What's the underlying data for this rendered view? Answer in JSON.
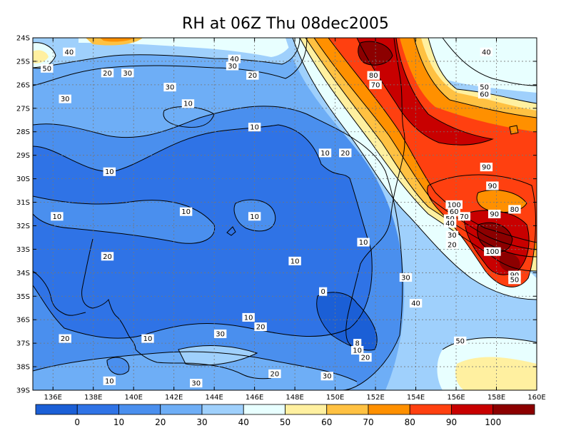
{
  "chart_data": {
    "type": "heatmap",
    "title": "RH at 06Z Thu 08dec2005",
    "xlabel": "",
    "ylabel": "",
    "xlim": [
      135,
      160
    ],
    "ylim": [
      -39,
      -24
    ],
    "x_ticks": [
      136,
      138,
      140,
      142,
      144,
      146,
      148,
      150,
      152,
      154,
      156,
      158,
      160
    ],
    "x_tick_labels": [
      "136E",
      "138E",
      "140E",
      "142E",
      "144E",
      "146E",
      "148E",
      "150E",
      "152E",
      "154E",
      "156E",
      "158E",
      "160E"
    ],
    "y_ticks": [
      -24,
      -25,
      -26,
      -27,
      -28,
      -29,
      -30,
      -31,
      -32,
      -33,
      -34,
      -35,
      -36,
      -37,
      -38,
      -39
    ],
    "y_tick_labels": [
      "24S",
      "25S",
      "26S",
      "27S",
      "28S",
      "29S",
      "30S",
      "31S",
      "32S",
      "33S",
      "34S",
      "35S",
      "36S",
      "37S",
      "38S",
      "39S"
    ],
    "grid": true,
    "levels": [
      0,
      10,
      20,
      30,
      40,
      50,
      60,
      70,
      80,
      90,
      100
    ],
    "colorbar_labels": [
      "0",
      "10",
      "20",
      "30",
      "40",
      "50",
      "60",
      "70",
      "80",
      "90",
      "100"
    ],
    "colors": [
      "#1b5fd6",
      "#2f73e6",
      "#4a8fee",
      "#6eaef6",
      "#9fd0fc",
      "#e8ffff",
      "#fff0a0",
      "#ffc142",
      "#ff9000",
      "#ff4010",
      "#c80000",
      "#8c0000"
    ],
    "contour_labels": [
      {
        "text": "40",
        "lon": 136.8,
        "lat": -24.6
      },
      {
        "text": "50",
        "lon": 135.7,
        "lat": -25.3
      },
      {
        "text": "20",
        "lon": 138.7,
        "lat": -25.5
      },
      {
        "text": "30",
        "lon": 139.7,
        "lat": -25.5
      },
      {
        "text": "30",
        "lon": 141.8,
        "lat": -26.1
      },
      {
        "text": "30",
        "lon": 136.6,
        "lat": -26.6
      },
      {
        "text": "40",
        "lon": 145.0,
        "lat": -24.9
      },
      {
        "text": "30",
        "lon": 144.9,
        "lat": -25.2
      },
      {
        "text": "20",
        "lon": 145.9,
        "lat": -25.6
      },
      {
        "text": "10",
        "lon": 142.7,
        "lat": -26.8
      },
      {
        "text": "10",
        "lon": 146.0,
        "lat": -27.8
      },
      {
        "text": "10",
        "lon": 149.5,
        "lat": -28.9
      },
      {
        "text": "20",
        "lon": 150.5,
        "lat": -28.9
      },
      {
        "text": "10",
        "lon": 138.8,
        "lat": -29.7
      },
      {
        "text": "10",
        "lon": 136.2,
        "lat": -31.6
      },
      {
        "text": "10",
        "lon": 142.6,
        "lat": -31.4
      },
      {
        "text": "10",
        "lon": 146.0,
        "lat": -31.6
      },
      {
        "text": "20",
        "lon": 138.7,
        "lat": -33.3
      },
      {
        "text": "10",
        "lon": 148.0,
        "lat": -33.5
      },
      {
        "text": "10",
        "lon": 151.4,
        "lat": -32.7
      },
      {
        "text": "0",
        "lon": 149.4,
        "lat": -34.8
      },
      {
        "text": "10",
        "lon": 145.7,
        "lat": -35.9
      },
      {
        "text": "20",
        "lon": 146.3,
        "lat": -36.3
      },
      {
        "text": "30",
        "lon": 144.3,
        "lat": -36.6
      },
      {
        "text": "10",
        "lon": 140.7,
        "lat": -36.8
      },
      {
        "text": "20",
        "lon": 136.6,
        "lat": -36.8
      },
      {
        "text": "8",
        "lon": 151.1,
        "lat": -37.0
      },
      {
        "text": "10",
        "lon": 151.1,
        "lat": -37.3
      },
      {
        "text": "20",
        "lon": 151.5,
        "lat": -37.6
      },
      {
        "text": "30",
        "lon": 149.6,
        "lat": -38.4
      },
      {
        "text": "20",
        "lon": 147.0,
        "lat": -38.3
      },
      {
        "text": "30",
        "lon": 143.1,
        "lat": -38.7
      },
      {
        "text": "10",
        "lon": 138.8,
        "lat": -38.6
      },
      {
        "text": "80",
        "lon": 151.9,
        "lat": -25.6
      },
      {
        "text": "70",
        "lon": 152.0,
        "lat": -26.0
      },
      {
        "text": "40",
        "lon": 157.5,
        "lat": -24.6
      },
      {
        "text": "50",
        "lon": 157.4,
        "lat": -26.1
      },
      {
        "text": "60",
        "lon": 157.4,
        "lat": -26.4
      },
      {
        "text": "90",
        "lon": 157.5,
        "lat": -29.5
      },
      {
        "text": "90",
        "lon": 157.8,
        "lat": -30.3
      },
      {
        "text": "100",
        "lon": 155.9,
        "lat": -31.1
      },
      {
        "text": "60",
        "lon": 155.9,
        "lat": -31.4
      },
      {
        "text": "70",
        "lon": 156.4,
        "lat": -31.6
      },
      {
        "text": "50",
        "lon": 155.7,
        "lat": -31.7
      },
      {
        "text": "40",
        "lon": 155.7,
        "lat": -31.9
      },
      {
        "text": "30",
        "lon": 155.8,
        "lat": -32.4
      },
      {
        "text": "20",
        "lon": 155.8,
        "lat": -32.8
      },
      {
        "text": "90",
        "lon": 157.9,
        "lat": -31.5
      },
      {
        "text": "80",
        "lon": 158.9,
        "lat": -31.3
      },
      {
        "text": "100",
        "lon": 157.8,
        "lat": -33.1
      },
      {
        "text": "90",
        "lon": 158.9,
        "lat": -34.1
      },
      {
        "text": "30",
        "lon": 153.5,
        "lat": -34.2
      },
      {
        "text": "40",
        "lon": 154.0,
        "lat": -35.3
      },
      {
        "text": "50",
        "lon": 156.2,
        "lat": -36.9
      },
      {
        "text": "50",
        "lon": 158.9,
        "lat": -34.3
      }
    ]
  }
}
